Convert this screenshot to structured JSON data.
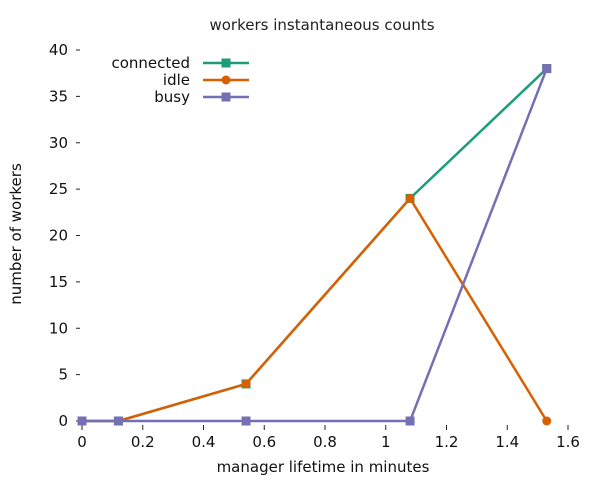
{
  "chart_data": {
    "type": "line",
    "title": "workers instantaneous counts",
    "xlabel": "manager lifetime in minutes",
    "ylabel": "number of workers",
    "xlim": [
      0,
      1.6
    ],
    "ylim": [
      0,
      40
    ],
    "x_ticks": [
      0,
      0.2,
      0.4,
      0.6,
      0.8,
      1,
      1.2,
      1.4,
      1.6
    ],
    "x_tick_labels": [
      "0",
      "0.2",
      "0.4",
      "0.6",
      "0.8",
      "1",
      "1.2",
      "1.4",
      "1.6"
    ],
    "y_ticks": [
      0,
      5,
      10,
      15,
      20,
      25,
      30,
      35,
      40
    ],
    "y_tick_labels": [
      "0",
      "5",
      "10",
      "15",
      "20",
      "25",
      "30",
      "35",
      "40"
    ],
    "grid": false,
    "legend_position": "top-left",
    "series": [
      {
        "name": "connected",
        "color": "#1b9e77",
        "marker": "square",
        "x": [
          0,
          0.12,
          0.54,
          1.08,
          1.53
        ],
        "y": [
          0,
          0,
          4,
          24,
          38
        ]
      },
      {
        "name": "idle",
        "color": "#d95f02",
        "marker": "circle",
        "x": [
          0,
          0.12,
          0.54,
          1.08,
          1.53
        ],
        "y": [
          0,
          0,
          4,
          24,
          0
        ]
      },
      {
        "name": "busy",
        "color": "#7570b3",
        "marker": "square",
        "x": [
          0,
          0.12,
          0.54,
          1.08,
          1.53
        ],
        "y": [
          0,
          0,
          0,
          0,
          38
        ]
      }
    ]
  }
}
